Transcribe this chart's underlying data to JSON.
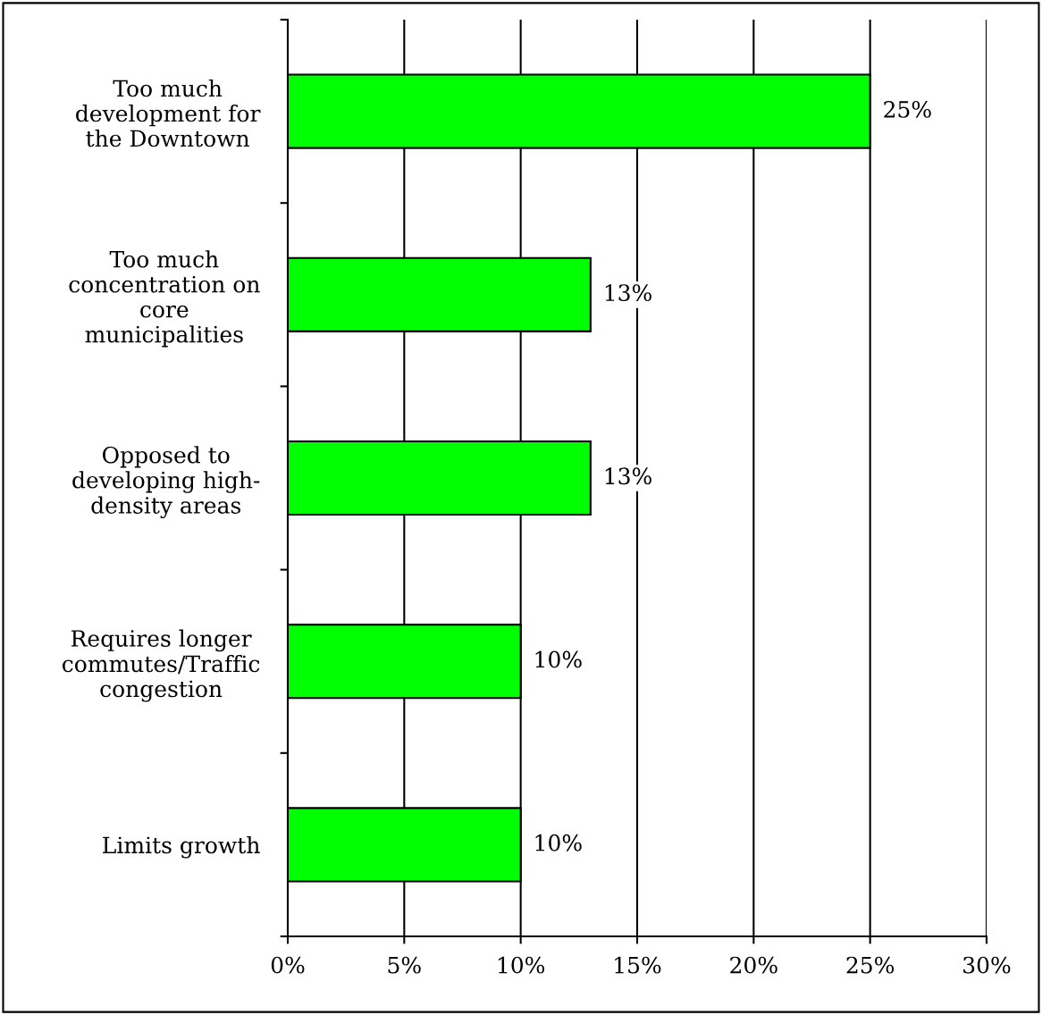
{
  "chart_data": {
    "type": "bar",
    "orientation": "horizontal",
    "categories": [
      "Too much\ndevelopment for\nthe Downtown",
      "Too much\nconcentration on\ncore\nmunicipalities",
      "Opposed to\ndeveloping high-\ndensity areas",
      "Requires longer\ncommutes/Traffic\ncongestion",
      "Limits growth"
    ],
    "values": [
      25,
      13,
      13,
      10,
      10
    ],
    "value_labels": [
      "25%",
      "13%",
      "13%",
      "10%",
      "10%"
    ],
    "color": "#00ff00",
    "xlim": [
      0,
      30
    ],
    "xticks": [
      {
        "value": 0,
        "label": "0%"
      },
      {
        "value": 5,
        "label": "5%"
      },
      {
        "value": 10,
        "label": "10%"
      },
      {
        "value": 15,
        "label": "15%"
      },
      {
        "value": 20,
        "label": "20%"
      },
      {
        "value": 25,
        "label": "25%"
      },
      {
        "value": 30,
        "label": "30%"
      }
    ],
    "grid": "x"
  }
}
